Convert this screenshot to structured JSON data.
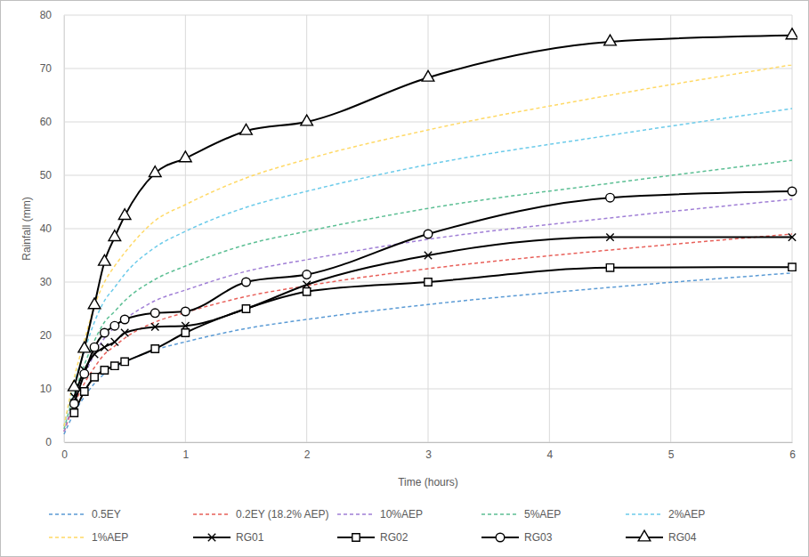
{
  "chart_data": {
    "type": "line",
    "x_label": "Time (hours)",
    "y_label": "Rainfall (mm)",
    "x": [
      0,
      0.083,
      0.167,
      0.25,
      0.333,
      0.417,
      0.5,
      0.75,
      1,
      1.5,
      2,
      3,
      4.5,
      6
    ],
    "xlim": [
      0,
      6
    ],
    "xticks": [
      0,
      1,
      2,
      3,
      4,
      5,
      6
    ],
    "ylim": [
      0,
      80
    ],
    "yticks": [
      0,
      10,
      20,
      30,
      40,
      50,
      60,
      70,
      80
    ],
    "grid": true,
    "legend": "bottom",
    "series": [
      {
        "name": "0.5EY",
        "color": "#5b9bd5",
        "line_style": "dashed",
        "marker": "none",
        "values": [
          1.5,
          5.5,
          8.5,
          11,
          12.8,
          14,
          15,
          17.3,
          18.8,
          21.3,
          23,
          25.8,
          29,
          31.7
        ]
      },
      {
        "name": "0.2EY (18.2% AEP)",
        "color": "#e8605a",
        "line_style": "dashed",
        "marker": "none",
        "values": [
          2,
          7,
          11,
          14,
          16.5,
          18,
          19.5,
          22.5,
          24.3,
          27.3,
          29.3,
          32.5,
          36,
          39
        ]
      },
      {
        "name": "10%AEP",
        "color": "#a07fd6",
        "line_style": "dashed",
        "marker": "none",
        "values": [
          2,
          8,
          12.5,
          16.5,
          19.5,
          21.5,
          23,
          26.5,
          28.5,
          32,
          34.2,
          38,
          42,
          45.5
        ]
      },
      {
        "name": "5%AEP",
        "color": "#5cbf94",
        "line_style": "dashed",
        "marker": "none",
        "values": [
          2.5,
          9,
          14.5,
          19,
          22.5,
          24.5,
          26.5,
          30.5,
          33,
          37,
          39.5,
          43.8,
          48.5,
          52.8
        ]
      },
      {
        "name": "2%AEP",
        "color": "#6ccbea",
        "line_style": "dashed",
        "marker": "none",
        "values": [
          3,
          11,
          17,
          22.5,
          26.5,
          29,
          31.5,
          36.5,
          39.5,
          44,
          47,
          52,
          57.5,
          62.5
        ]
      },
      {
        "name": "1%AEP",
        "color": "#ffd966",
        "line_style": "dashed",
        "marker": "none",
        "values": [
          3,
          12,
          19,
          25.5,
          30,
          33,
          35.5,
          41.5,
          44.5,
          49.5,
          53,
          58.5,
          65,
          70.7
        ]
      },
      {
        "name": "RG01",
        "color": "#000000",
        "line_style": "solid",
        "marker": "x",
        "values": [
          null,
          8.5,
          13.5,
          16.5,
          17.8,
          18.8,
          20.5,
          21.6,
          21.8,
          25,
          29.5,
          35,
          38.4,
          38.4
        ]
      },
      {
        "name": "RG02",
        "color": "#000000",
        "line_style": "solid",
        "marker": "square",
        "values": [
          null,
          5.5,
          9.5,
          12.2,
          13.5,
          14.3,
          15.1,
          17.5,
          20.5,
          25,
          28.2,
          30,
          32.7,
          32.8
        ]
      },
      {
        "name": "RG03",
        "color": "#000000",
        "line_style": "solid",
        "marker": "circle",
        "values": [
          null,
          7.2,
          12.8,
          17.8,
          20.5,
          21.8,
          23,
          24.2,
          24.5,
          30,
          31.4,
          39,
          45.8,
          47
        ]
      },
      {
        "name": "RG04",
        "color": "#000000",
        "line_style": "solid",
        "marker": "triangle",
        "values": [
          null,
          10.3,
          17.5,
          25.7,
          33.8,
          38.4,
          42.4,
          50.4,
          53.2,
          58.3,
          60,
          68.3,
          75,
          76.2
        ]
      }
    ]
  }
}
